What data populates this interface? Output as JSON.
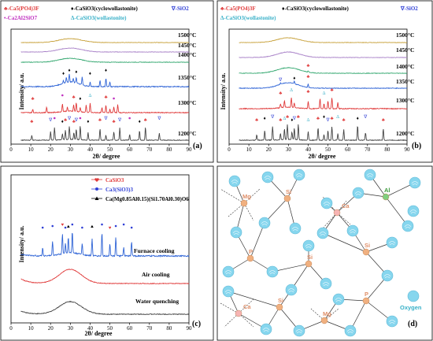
{
  "panel_a": {
    "tag": "(a)",
    "xlabel": "2θ/ degree",
    "ylabel": "Intensity/ a.u.",
    "legend": {
      "fluorapatite": "♣-Ca5(PO4)3F",
      "cyclowollastonite": "♦-CaSiO3(cyclowollastonite)",
      "silica": "∇-SiO2",
      "gehlenite": "•-Ca2Al2SiO7",
      "wollastonite": "Δ-CaSiO3(wollastonite)"
    },
    "curve_labels": [
      "1500°C",
      "1450°C",
      "1400°C",
      "1350°C",
      "1300°C",
      "1200°C"
    ]
  },
  "panel_b": {
    "tag": "(b)",
    "xlabel": "2θ/ degree",
    "ylabel": "Intensity/ a.u.",
    "legend": {
      "fluorapatite": "♣-Ca5(PO4)3F",
      "cyclowollastonite": "♦-CaSiO3(cyclowollastonite)",
      "silica": "∇-SiO2",
      "wollastonite": "Δ-CaSiO3(wollastonite)"
    },
    "curve_labels": [
      "1500°C",
      "1450°C",
      "1400°C",
      "1350°C",
      "1300°C",
      "1200°C"
    ]
  },
  "panel_c": {
    "tag": "(c)",
    "xlabel": "2θ/ degree",
    "ylabel": "Intensity/ a.u.",
    "legend": {
      "casio3": "CaSiO3",
      "ca3sio3": "Ca3(SiO3)3",
      "pyroxene": "Ca(Mg0.85Al0.15)(Si1.70Al0.30)O6"
    },
    "curve_labels": [
      "Furnace cooling",
      "Air cooling",
      "Water quenching"
    ]
  },
  "panel_d": {
    "tag": "(d)",
    "legend": "Oxygen",
    "atoms": [
      "Mg",
      "Si",
      "Ca",
      "Al",
      "Si",
      "P",
      "Si",
      "Ca",
      "Si",
      "Mg",
      "P"
    ]
  },
  "chart_data": [
    {
      "type": "line",
      "panel": "a",
      "xlabel": "2θ/ degree",
      "ylabel": "Intensity/ a.u.",
      "xlim": [
        0,
        90
      ],
      "xticks": [
        0,
        10,
        20,
        30,
        40,
        50,
        60,
        70,
        80,
        90
      ],
      "series": [
        {
          "name": "1500°C",
          "color": "#c8a23c",
          "shape": "amorphous",
          "hump_center": 30
        },
        {
          "name": "1450°C",
          "color": "#a982c8",
          "shape": "amorphous",
          "hump_center": 30
        },
        {
          "name": "1400°C",
          "color": "#34a870",
          "shape": "amorphous",
          "hump_center": 30
        },
        {
          "name": "1350°C",
          "color": "#2f64d6",
          "shape": "crystalline",
          "peaks": [
            26.5,
            28,
            29.5,
            31.5,
            33,
            36,
            40,
            45,
            48,
            50
          ]
        },
        {
          "name": "1300°C",
          "color": "#e03a3a",
          "shape": "crystalline",
          "peaks": [
            11,
            18,
            26,
            28.5,
            31.7,
            33,
            35,
            38,
            40,
            46,
            48,
            50,
            52,
            54
          ]
        },
        {
          "name": "1200°C",
          "color": "#444444",
          "shape": "crystalline",
          "peaks": [
            10.5,
            20,
            22,
            26,
            27.5,
            29.5,
            31.8,
            33,
            35,
            39,
            45,
            48,
            52,
            55,
            60,
            65,
            68,
            75
          ]
        }
      ]
    },
    {
      "type": "line",
      "panel": "b",
      "xlabel": "2θ/ degree",
      "ylabel": "Intensity/ a.u.",
      "xlim": [
        0,
        90
      ],
      "xticks": [
        0,
        10,
        20,
        30,
        40,
        50,
        60,
        70,
        80,
        90
      ],
      "series": [
        {
          "name": "1500°C",
          "color": "#c8a23c",
          "shape": "amorphous",
          "hump_center": 30
        },
        {
          "name": "1450°C",
          "color": "#a982c8",
          "shape": "amorphous",
          "hump_center": 30
        },
        {
          "name": "1400°C",
          "color": "#34a870",
          "shape": "amorphous",
          "hump_center": 30,
          "peaks": [
            40
          ]
        },
        {
          "name": "1350°C",
          "color": "#2f64d6",
          "shape": "amorphous",
          "hump_center": 30,
          "peaks": [
            26,
            33,
            40
          ]
        },
        {
          "name": "1300°C",
          "color": "#e03a3a",
          "shape": "crystalline",
          "peaks": [
            26,
            28,
            31.5,
            33,
            40,
            46,
            48,
            50,
            52,
            55
          ]
        },
        {
          "name": "1200°C",
          "color": "#444444",
          "shape": "crystalline",
          "peaks": [
            14,
            18,
            22,
            26,
            28,
            29.5,
            31.8,
            33,
            35,
            40,
            45,
            48,
            50,
            52,
            55,
            58,
            65,
            69,
            78
          ]
        }
      ]
    },
    {
      "type": "line",
      "panel": "c",
      "xlabel": "2θ/ degree",
      "ylabel": "Intensity/ a.u.",
      "xlim": [
        0,
        90
      ],
      "xticks": [
        0,
        10,
        20,
        30,
        40,
        50,
        60,
        70,
        80,
        90
      ],
      "series": [
        {
          "name": "Furnace cooling",
          "color": "#2f64d6",
          "shape": "crystalline",
          "peaks": [
            16,
            21,
            26,
            27.5,
            29,
            31,
            36,
            41,
            46,
            50,
            53,
            57,
            61
          ]
        },
        {
          "name": "Air cooling",
          "color": "#e03a3a",
          "shape": "amorphous",
          "hump_center": 30
        },
        {
          "name": "Water quenching",
          "color": "#444444",
          "shape": "amorphous",
          "hump_center": 30
        }
      ]
    }
  ]
}
